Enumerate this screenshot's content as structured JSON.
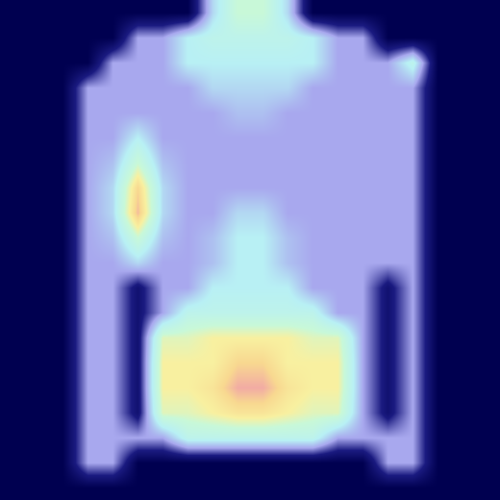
{
  "chart_data": {
    "type": "heatmap",
    "tick_labels": false,
    "zlim": [
      0,
      1
    ],
    "cells": [
      [
        0,
        0,
        0,
        0,
        0,
        0,
        0,
        0,
        0.4,
        0.6,
        0.6,
        0.4,
        0,
        0,
        0,
        0,
        0,
        0,
        0,
        0
      ],
      [
        0,
        0,
        0,
        0,
        0,
        0.3,
        0.3,
        0.45,
        0.5,
        0.5,
        0.5,
        0.5,
        0.45,
        0.3,
        0.3,
        0,
        0,
        0,
        0,
        0
      ],
      [
        0,
        0,
        0,
        0,
        0.3,
        0.3,
        0.3,
        0.45,
        0.45,
        0.45,
        0.45,
        0.45,
        0.45,
        0.3,
        0.3,
        0.3,
        0.5,
        0,
        0,
        0
      ],
      [
        0,
        0,
        0,
        0.3,
        0.3,
        0.3,
        0.3,
        0.3,
        0.4,
        0.4,
        0.4,
        0.4,
        0.3,
        0.3,
        0.3,
        0.3,
        0.3,
        0,
        0,
        0
      ],
      [
        0,
        0,
        0,
        0.3,
        0.3,
        0.3,
        0.3,
        0.3,
        0.3,
        0.35,
        0.35,
        0.3,
        0.3,
        0.3,
        0.3,
        0.3,
        0.3,
        0,
        0,
        0
      ],
      [
        0,
        0,
        0,
        0.3,
        0.3,
        0.45,
        0.3,
        0.3,
        0.3,
        0.3,
        0.3,
        0.3,
        0.3,
        0.3,
        0.3,
        0.3,
        0.3,
        0,
        0,
        0
      ],
      [
        0,
        0,
        0,
        0.3,
        0.35,
        0.6,
        0.35,
        0.3,
        0.3,
        0.3,
        0.3,
        0.3,
        0.3,
        0.3,
        0.3,
        0.3,
        0.3,
        0,
        0,
        0
      ],
      [
        0,
        0,
        0,
        0.3,
        0.4,
        0.8,
        0.4,
        0.3,
        0.3,
        0.3,
        0.3,
        0.3,
        0.3,
        0.3,
        0.3,
        0.3,
        0.3,
        0,
        0,
        0
      ],
      [
        0,
        0,
        0,
        0.3,
        0.4,
        0.85,
        0.4,
        0.3,
        0.3,
        0.4,
        0.4,
        0.3,
        0.3,
        0.3,
        0.3,
        0.3,
        0.3,
        0,
        0,
        0
      ],
      [
        0,
        0,
        0,
        0.3,
        0.35,
        0.6,
        0.35,
        0.3,
        0.35,
        0.45,
        0.45,
        0.35,
        0.3,
        0.3,
        0.3,
        0.3,
        0.3,
        0,
        0,
        0
      ],
      [
        0,
        0,
        0,
        0.3,
        0.3,
        0.4,
        0.3,
        0.3,
        0.35,
        0.45,
        0.45,
        0.35,
        0.3,
        0.3,
        0.3,
        0.3,
        0.3,
        0,
        0,
        0
      ],
      [
        0,
        0,
        0,
        0.3,
        0.3,
        0.1,
        0.3,
        0.3,
        0.45,
        0.45,
        0.45,
        0.45,
        0.3,
        0.3,
        0.3,
        0.1,
        0.3,
        0,
        0,
        0
      ],
      [
        0,
        0,
        0,
        0.3,
        0.3,
        0.1,
        0.3,
        0.5,
        0.5,
        0.5,
        0.5,
        0.5,
        0.5,
        0.3,
        0.3,
        0.1,
        0.3,
        0,
        0,
        0
      ],
      [
        0,
        0,
        0,
        0.3,
        0.3,
        0.1,
        0.65,
        0.65,
        0.7,
        0.7,
        0.7,
        0.7,
        0.65,
        0.65,
        0.3,
        0.1,
        0.3,
        0,
        0,
        0
      ],
      [
        0,
        0,
        0,
        0.3,
        0.3,
        0.1,
        0.7,
        0.7,
        0.7,
        0.8,
        0.8,
        0.7,
        0.7,
        0.7,
        0.3,
        0.1,
        0.3,
        0,
        0,
        0
      ],
      [
        0,
        0,
        0,
        0.3,
        0.3,
        0.1,
        0.7,
        0.7,
        0.75,
        0.88,
        0.88,
        0.75,
        0.7,
        0.7,
        0.3,
        0.1,
        0.3,
        0,
        0,
        0
      ],
      [
        0,
        0,
        0,
        0.3,
        0.3,
        0.1,
        0.65,
        0.65,
        0.7,
        0.75,
        0.75,
        0.7,
        0.65,
        0.65,
        0.3,
        0.1,
        0.3,
        0,
        0,
        0
      ],
      [
        0,
        0,
        0,
        0.3,
        0.3,
        0.3,
        0.3,
        0.5,
        0.5,
        0.5,
        0.5,
        0.5,
        0.5,
        0.3,
        0.3,
        0.3,
        0.3,
        0,
        0,
        0
      ],
      [
        0,
        0,
        0,
        0.3,
        0.3,
        0,
        0,
        0,
        0,
        0,
        0,
        0,
        0,
        0,
        0,
        0.3,
        0.3,
        0,
        0,
        0
      ],
      [
        0,
        0,
        0,
        0,
        0,
        0,
        0,
        0,
        0,
        0,
        0,
        0,
        0,
        0,
        0,
        0,
        0,
        0,
        0,
        0
      ]
    ]
  }
}
